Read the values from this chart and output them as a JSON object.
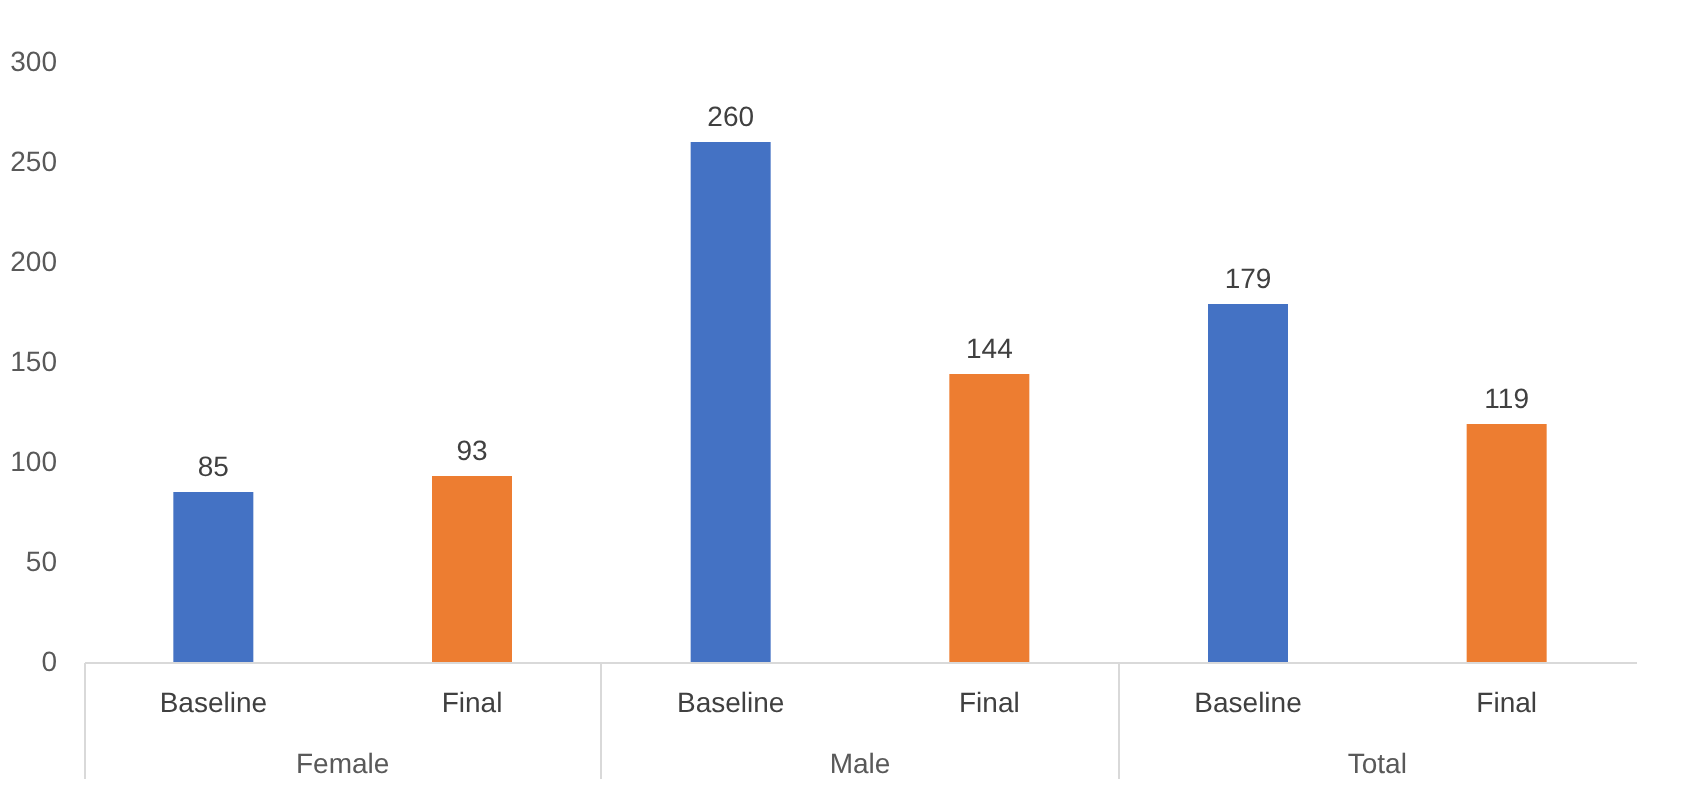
{
  "chart_data": {
    "type": "bar",
    "categories": [
      "Female",
      "Male",
      "Total"
    ],
    "series": [
      {
        "name": "Baseline",
        "color": "#4472c4",
        "values": [
          85,
          260,
          179
        ]
      },
      {
        "name": "Final",
        "color": "#ed7d31",
        "values": [
          93,
          144,
          119
        ]
      }
    ],
    "ylim": [
      0,
      300
    ],
    "yticks": [
      0,
      50,
      100,
      150,
      200,
      250,
      300
    ],
    "grid": false,
    "legend": false,
    "data_labels": true
  }
}
